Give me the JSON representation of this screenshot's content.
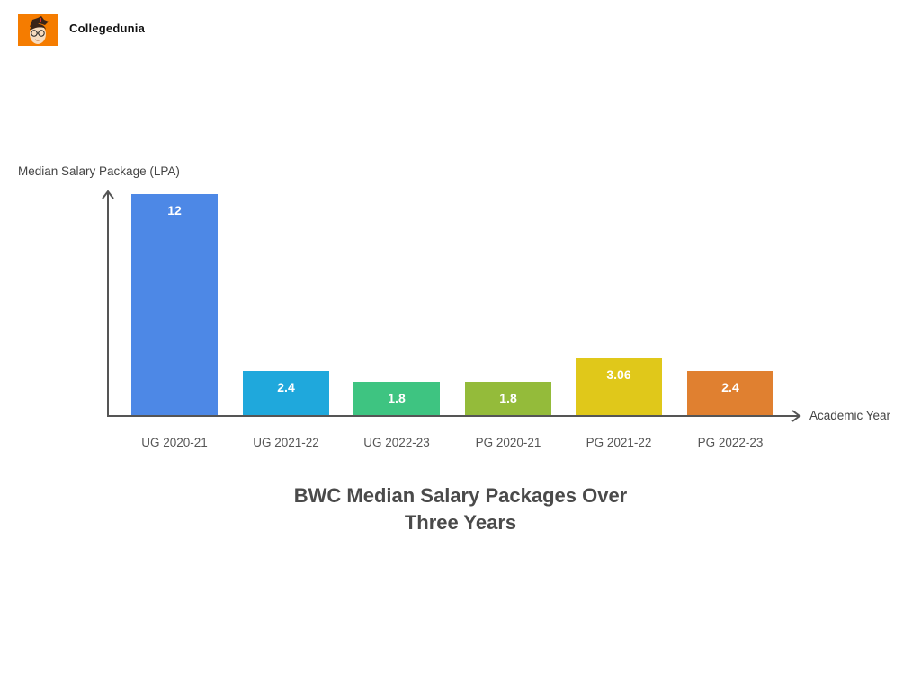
{
  "header": {
    "brand": "Collegedunia",
    "logo_icon": "collegedunia-mascot-icon"
  },
  "chart_data": {
    "type": "bar",
    "title": "BWC Median Salary Packages Over Three Years",
    "title_lines": [
      "BWC Median Salary Packages Over",
      "Three Years"
    ],
    "xlabel": "Academic Year",
    "ylabel": "Median Salary Package (LPA)",
    "categories": [
      "UG 2020-21",
      "UG 2021-22",
      "UG 2022-23",
      "PG 2020-21",
      "PG 2021-22",
      "PG 2022-23"
    ],
    "values": [
      12,
      2.4,
      1.8,
      1.8,
      3.06,
      2.4
    ],
    "value_labels": [
      "12",
      "2.4",
      "1.8",
      "1.8",
      "3.06",
      "2.4"
    ],
    "colors": [
      "#4d88e6",
      "#1fa8dc",
      "#3ec481",
      "#94bb3a",
      "#e0c81a",
      "#e08030"
    ],
    "ylim": [
      0,
      12
    ],
    "grid": false,
    "legend": "none"
  }
}
